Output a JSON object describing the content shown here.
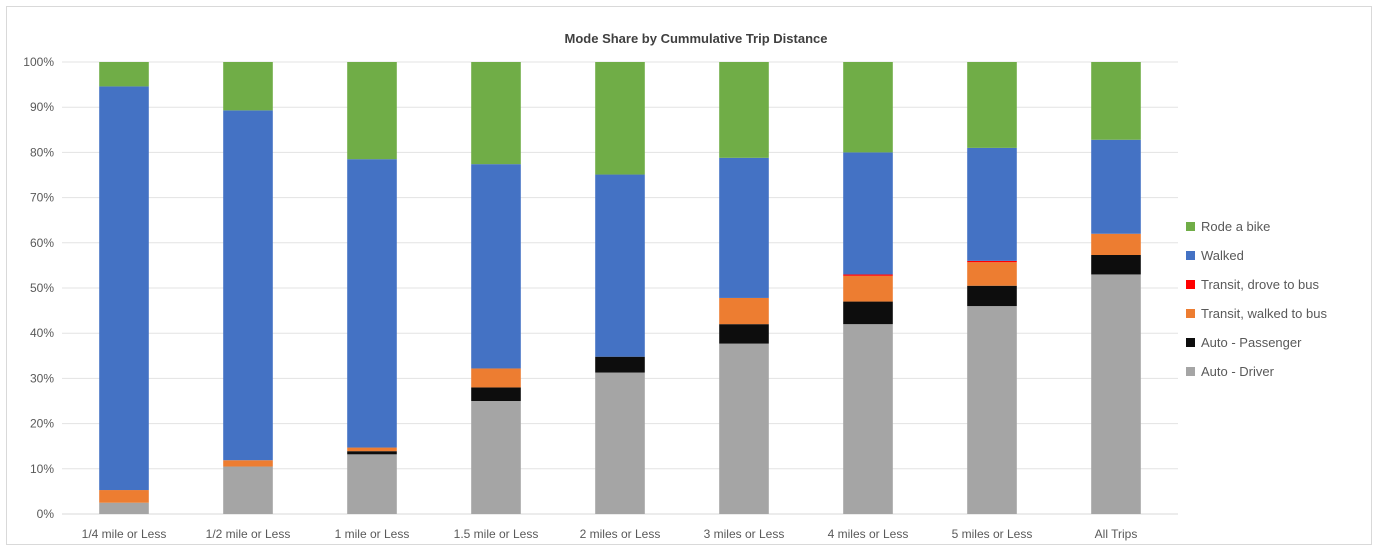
{
  "chart_data": {
    "type": "bar",
    "stacked": true,
    "percent": true,
    "title": "Mode Share by Cummulative Trip Distance",
    "xlabel": "",
    "ylabel": "",
    "ylim": [
      0,
      1
    ],
    "y_ticks": [
      "0%",
      "10%",
      "20%",
      "30%",
      "40%",
      "50%",
      "60%",
      "70%",
      "80%",
      "90%",
      "100%"
    ],
    "grid": true,
    "legend_position": "right",
    "categories": [
      "1/4 mile or Less",
      "1/2 mile or Less",
      "1 mile or Less",
      "1.5 mile or Less",
      "2 miles or Less",
      "3 miles or Less",
      "4 miles or Less",
      "5 miles or Less",
      "All Trips"
    ],
    "series": [
      {
        "name": "Auto - Driver",
        "color": "#a5a5a5",
        "values": [
          0.025,
          0.105,
          0.132,
          0.25,
          0.313,
          0.377,
          0.42,
          0.46,
          0.53
        ]
      },
      {
        "name": "Auto - Passenger",
        "color": "#0d0d0d",
        "values": [
          0.0,
          0.0,
          0.007,
          0.03,
          0.035,
          0.043,
          0.05,
          0.045,
          0.043
        ]
      },
      {
        "name": "Transit, walked to bus",
        "color": "#ed7d31",
        "values": [
          0.028,
          0.014,
          0.008,
          0.042,
          0.0,
          0.058,
          0.057,
          0.052,
          0.047
        ]
      },
      {
        "name": "Transit, drove to bus",
        "color": "#ff0000",
        "values": [
          0.0,
          0.0,
          0.0,
          0.0,
          0.0,
          0.0,
          0.003,
          0.003,
          0.0
        ]
      },
      {
        "name": "Walked",
        "color": "#4472c4",
        "values": [
          0.893,
          0.774,
          0.638,
          0.452,
          0.403,
          0.31,
          0.27,
          0.25,
          0.208
        ]
      },
      {
        "name": "Rode a bike",
        "color": "#70ad47",
        "values": [
          0.054,
          0.107,
          0.215,
          0.226,
          0.249,
          0.212,
          0.2,
          0.19,
          0.172
        ]
      }
    ],
    "legend_order": [
      "Rode a bike",
      "Walked",
      "Transit, drove to bus",
      "Transit, walked to bus",
      "Auto - Passenger",
      "Auto - Driver"
    ]
  }
}
